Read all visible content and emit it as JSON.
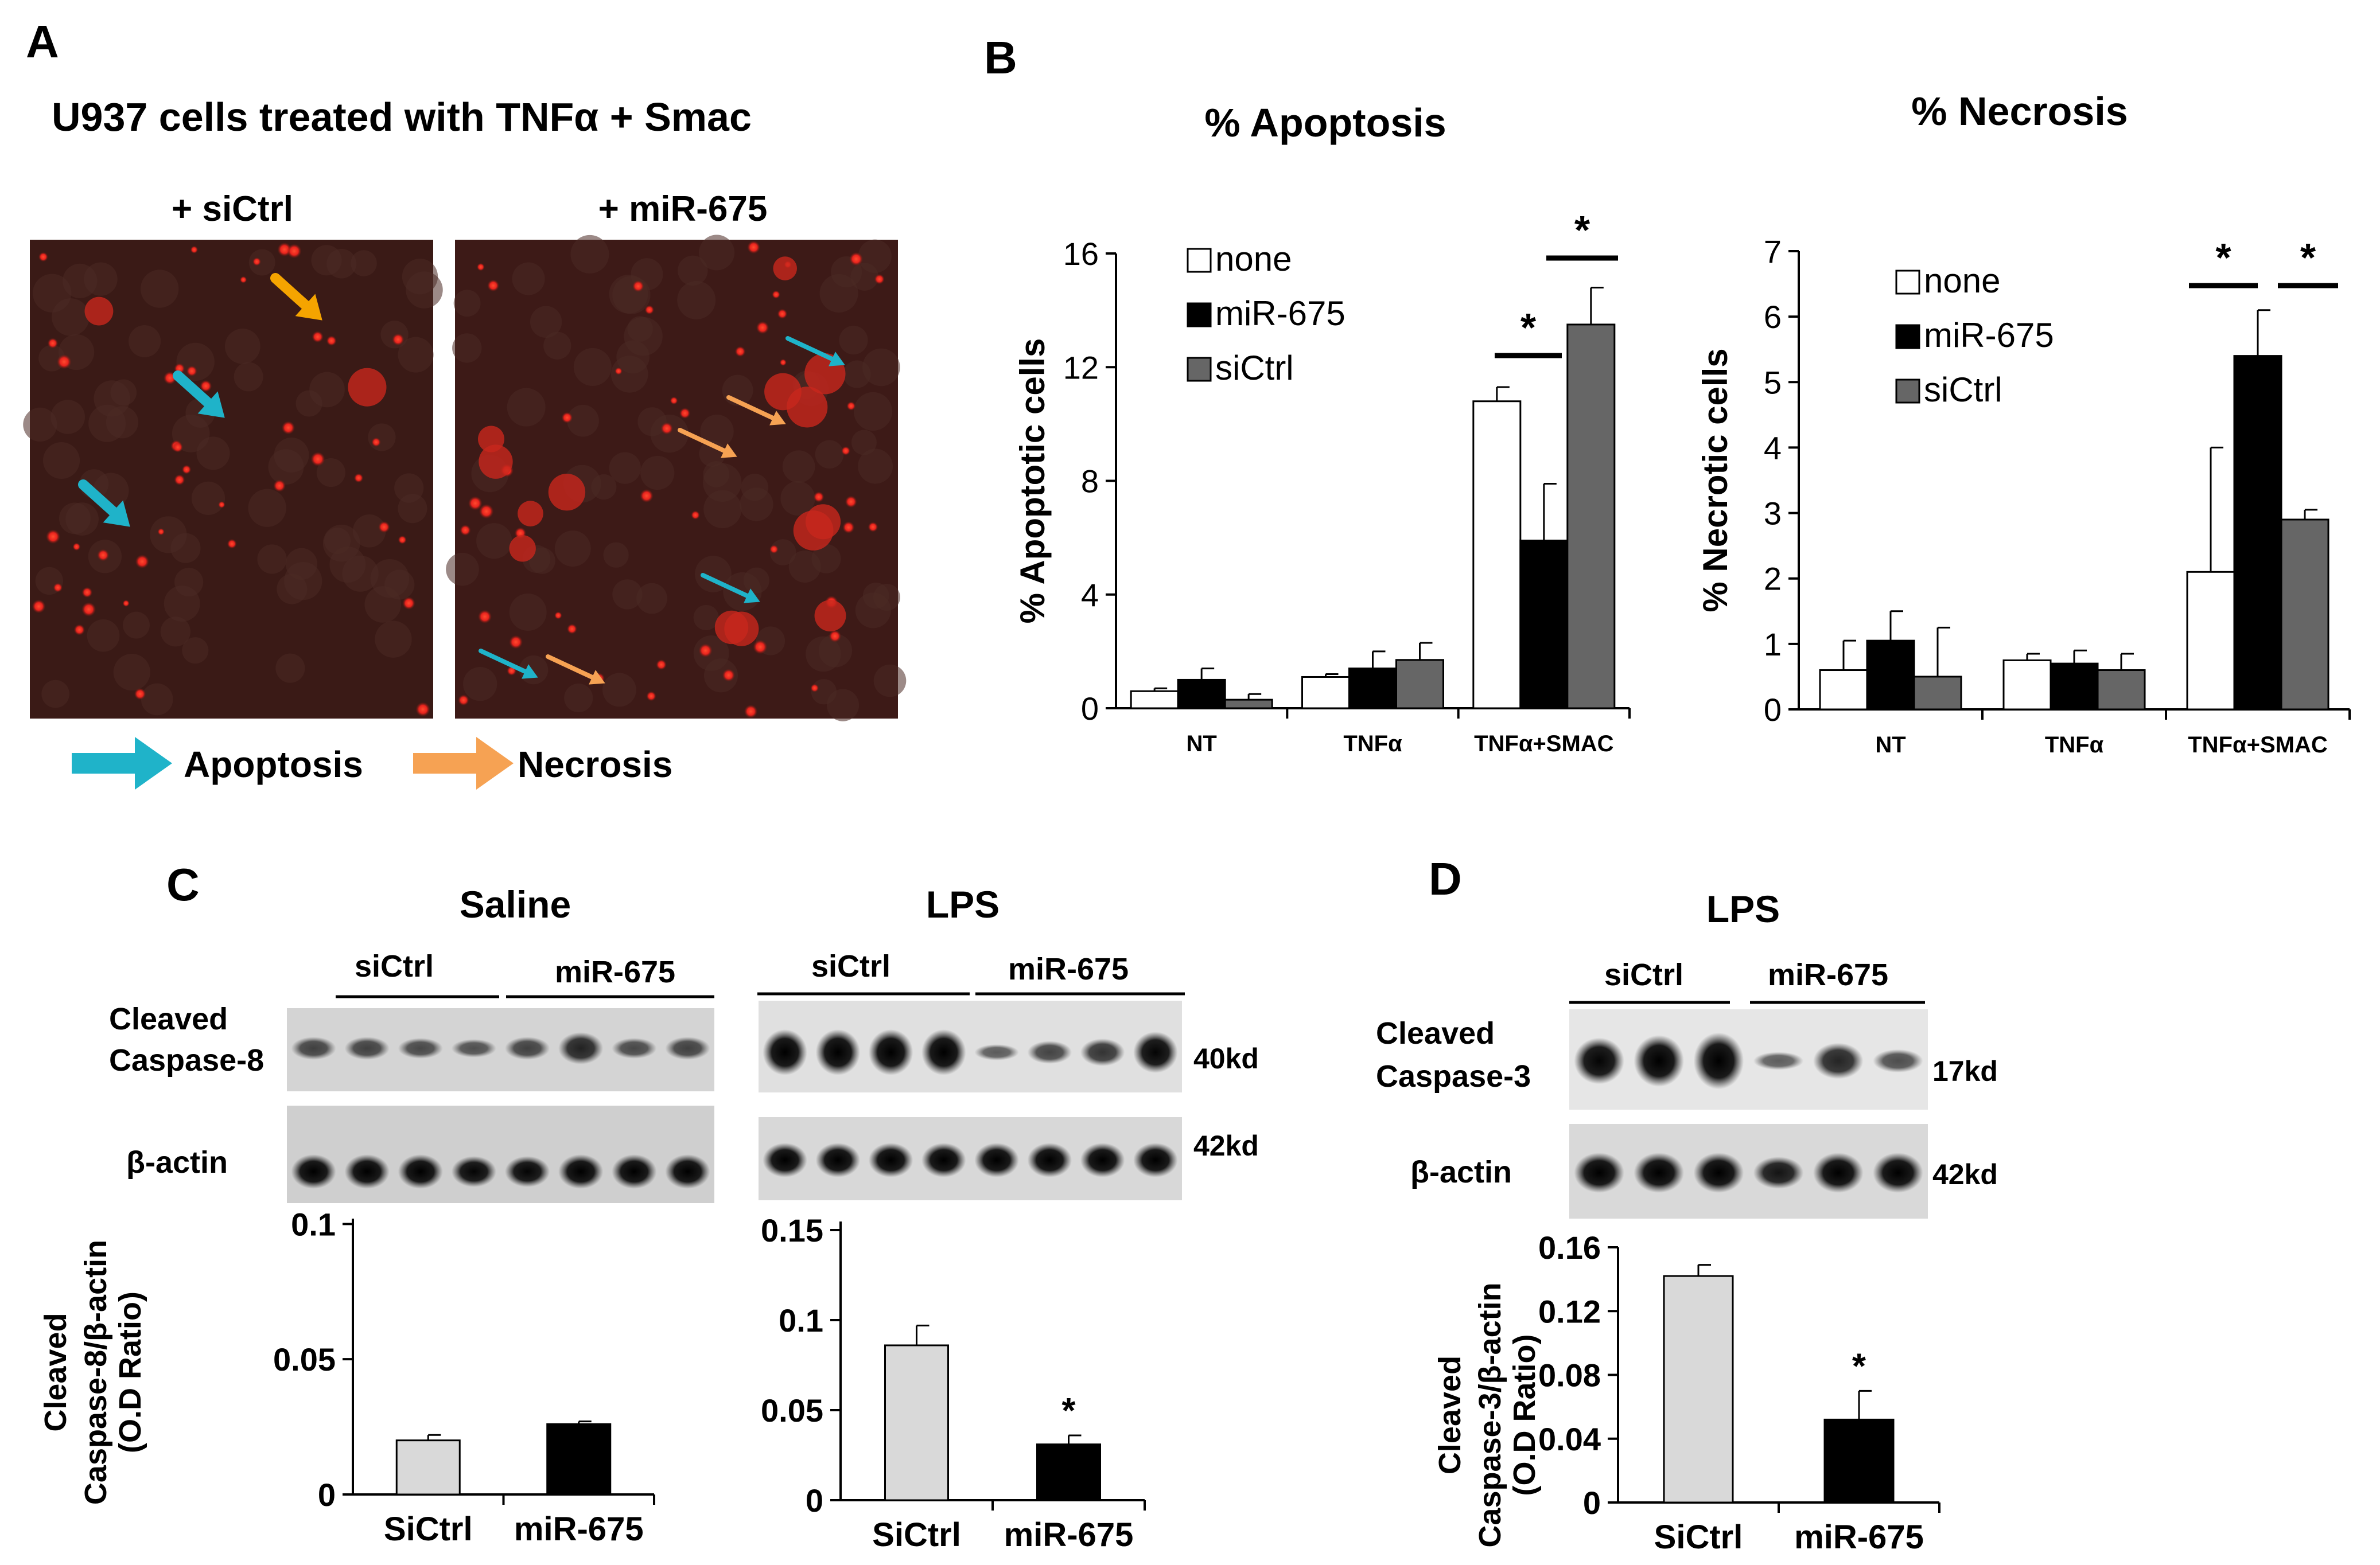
{
  "panel_labels": {
    "a": "A",
    "b": "B",
    "c": "C",
    "d": "D"
  },
  "panel_a": {
    "title": "U937 cells treated with TNFα + Smac",
    "left_image_label": "+ siCtrl",
    "right_image_label": "+ miR-675",
    "legend": {
      "apoptosis": "Apoptosis",
      "necrosis": "Necrosis"
    },
    "colors": {
      "apoptosis_arrow": "#1fb3c9",
      "necrosis_arrow": "#f6a253",
      "orange_arrow": "#f5a400",
      "cells": "#e8231d"
    }
  },
  "chart_data": [
    {
      "id": "apoptosis",
      "type": "bar",
      "title": "% Apoptosis",
      "ylabel": "% Apoptotic cells",
      "ylim": [
        0,
        16
      ],
      "yticks": [
        "0",
        "4",
        "8",
        "12",
        "16"
      ],
      "categories": [
        "NT",
        "TNFα",
        "TNFα+SMAC"
      ],
      "series": [
        {
          "name": "none",
          "color": "#ffffff",
          "values": [
            0.6,
            1.1,
            10.8
          ],
          "errors": [
            0.1,
            0.1,
            0.5
          ]
        },
        {
          "name": "miR-675",
          "color": "#000000",
          "values": [
            1.0,
            1.4,
            5.9
          ],
          "errors": [
            0.4,
            0.6,
            2.0
          ]
        },
        {
          "name": "siCtrl",
          "color": "#666666",
          "values": [
            0.3,
            1.7,
            13.5
          ],
          "errors": [
            0.2,
            0.6,
            1.3
          ]
        }
      ],
      "significance": [
        "*",
        "*"
      ],
      "legend_position": "top-left"
    },
    {
      "id": "necrosis",
      "type": "bar",
      "title": "% Necrosis",
      "ylabel": "% Necrotic cells",
      "ylim": [
        0,
        7
      ],
      "yticks": [
        "0",
        "1",
        "2",
        "3",
        "4",
        "5",
        "6",
        "7"
      ],
      "categories": [
        "NT",
        "TNFα",
        "TNFα+SMAC"
      ],
      "series": [
        {
          "name": "none",
          "color": "#ffffff",
          "values": [
            0.6,
            0.75,
            2.1
          ],
          "errors": [
            0.45,
            0.1,
            1.9
          ]
        },
        {
          "name": "miR-675",
          "color": "#000000",
          "values": [
            1.05,
            0.7,
            5.4
          ],
          "errors": [
            0.45,
            0.2,
            0.7
          ]
        },
        {
          "name": "siCtrl",
          "color": "#666666",
          "values": [
            0.5,
            0.6,
            2.9
          ],
          "errors": [
            0.75,
            0.25,
            0.15
          ]
        }
      ],
      "significance": [
        "*",
        "*"
      ],
      "legend_position": "top-left"
    },
    {
      "id": "c_saline",
      "type": "bar",
      "ylabel_line1": "Cleaved",
      "ylabel_line2": "Caspase-8/β-actin",
      "ylabel_line3": "(O.D Ratio)",
      "ylim": [
        0,
        0.12
      ],
      "yticks": [
        "0",
        "0.05",
        "0.1"
      ],
      "categories": [
        "SiCtrl",
        "miR-675"
      ],
      "values": [
        0.02,
        0.026
      ],
      "errors": [
        0.002,
        0.001
      ],
      "colors": [
        "#d9d9d9",
        "#000000"
      ]
    },
    {
      "id": "c_lps",
      "type": "bar",
      "ylim": [
        0,
        0.15
      ],
      "yticks": [
        "0",
        "0.05",
        "0.1",
        "0.15"
      ],
      "categories": [
        "SiCtrl",
        "miR-675"
      ],
      "values": [
        0.086,
        0.031
      ],
      "errors": [
        0.011,
        0.005
      ],
      "colors": [
        "#d9d9d9",
        "#000000"
      ],
      "significance": "*"
    },
    {
      "id": "d_lps",
      "type": "bar",
      "ylabel_line1": "Cleaved",
      "ylabel_line2": "Caspase-3/β-actin",
      "ylabel_line3": "(O.D Ratio)",
      "ylim": [
        0,
        0.16
      ],
      "yticks": [
        "0",
        "0.04",
        "0.08",
        "0.12",
        "0.16"
      ],
      "categories": [
        "SiCtrl",
        "miR-675"
      ],
      "values": [
        0.142,
        0.052
      ],
      "errors": [
        0.007,
        0.018
      ],
      "colors": [
        "#d9d9d9",
        "#000000"
      ],
      "significance": "*"
    }
  ],
  "panel_c": {
    "saline_title": "Saline",
    "lps_title": "LPS",
    "group1": "siCtrl",
    "group2": "miR-675",
    "protein1_line1": "Cleaved",
    "protein1_line2": "Caspase-8",
    "protein2": "β-actin",
    "mw1": "40kd",
    "mw2": "42kd"
  },
  "panel_d": {
    "title": "LPS",
    "group1": "siCtrl",
    "group2": "miR-675",
    "protein1_line1": "Cleaved",
    "protein1_line2": "Caspase-3",
    "protein2": "β-actin",
    "mw1": "17kd",
    "mw2": "42kd"
  }
}
